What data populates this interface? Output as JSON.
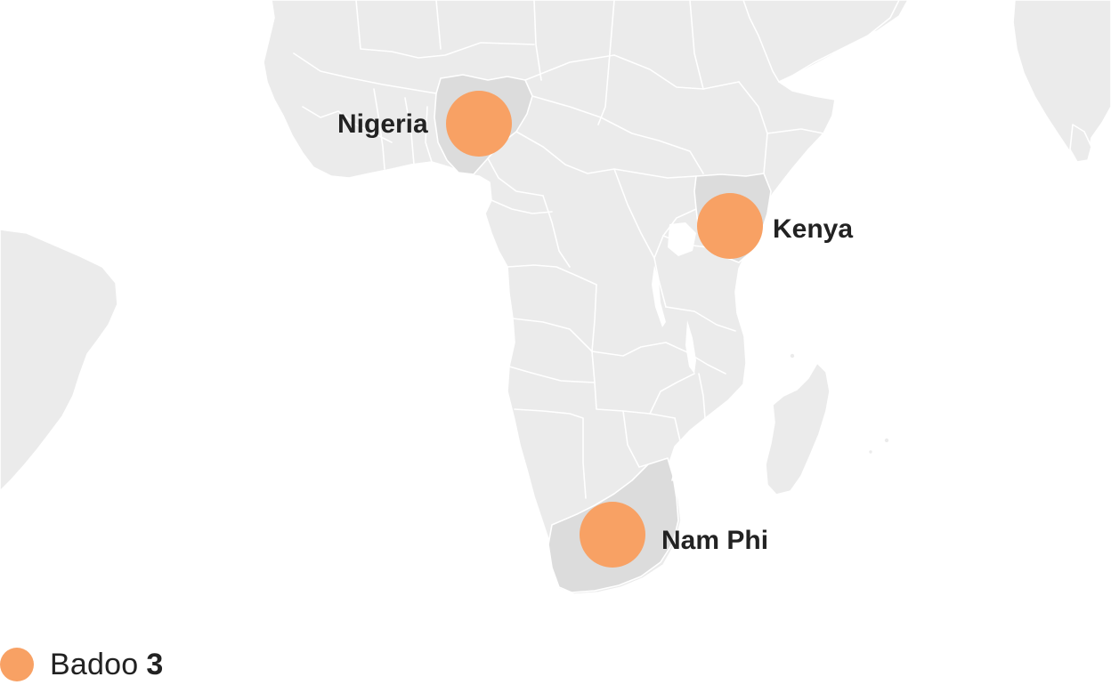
{
  "map": {
    "region": "Africa",
    "points": [
      {
        "id": "nigeria",
        "label": "Nigeria",
        "value": 1
      },
      {
        "id": "kenya",
        "label": "Kenya",
        "value": 1
      },
      {
        "id": "south-africa",
        "label": "Nam Phi",
        "value": 1
      }
    ],
    "bubble_color": "#f8a164",
    "land_color": "#ebebeb",
    "highlight_color": "#dcdcdc"
  },
  "legend": {
    "label": "Badoo",
    "count": "3",
    "color": "#f8a164"
  }
}
